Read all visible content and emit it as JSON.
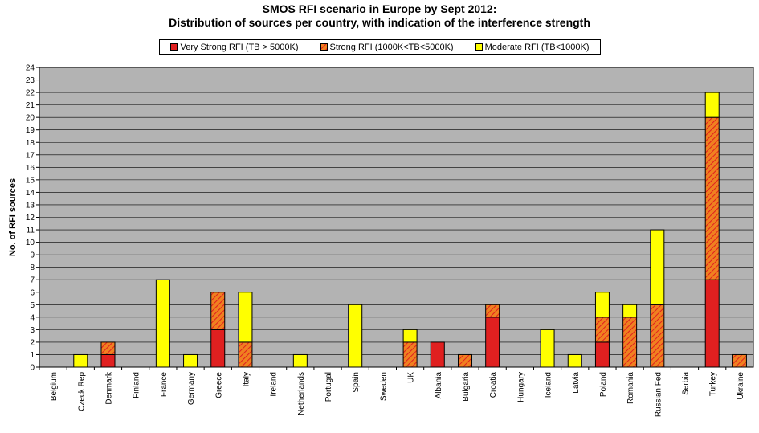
{
  "chart_data": {
    "type": "bar",
    "stacked": true,
    "title": "SMOS RFI scenario in Europe by  Sept 2012:",
    "subtitle": "Distribution of sources per country, with indication of the interference strength",
    "ylabel": "No. of RFI sources",
    "ylim": [
      0,
      24
    ],
    "yticks": [
      0,
      1,
      2,
      3,
      4,
      5,
      6,
      7,
      8,
      9,
      10,
      11,
      12,
      13,
      14,
      15,
      16,
      17,
      18,
      19,
      20,
      21,
      22,
      23,
      24
    ],
    "grid": true,
    "legend_position": "top-center",
    "categories": [
      "Belgium",
      "Czeck Rep",
      "Denmark",
      "Finland",
      "France",
      "Germany",
      "Greece",
      "Italy",
      "Ireland",
      "Netherlands",
      "Portugal",
      "Spain",
      "Sweden",
      "UK",
      "Albania",
      "Bulgaria",
      "Croatia",
      "Hungary",
      "Iceland",
      "Latvia",
      "Poland",
      "Romania",
      "Russian Fed",
      "Serbia",
      "Turkey",
      "Ukraine"
    ],
    "series": [
      {
        "name": "Very Strong RFI (TB > 5000K)",
        "color": "#e02020",
        "pattern": "solid",
        "values": [
          0,
          0,
          1,
          0,
          0,
          0,
          3,
          0,
          0,
          0,
          0,
          0,
          0,
          0,
          2,
          0,
          4,
          0,
          0,
          0,
          2,
          0,
          0,
          0,
          7,
          0
        ]
      },
      {
        "name": "Strong RFI (1000K<TB<5000K)",
        "color": "#f08020",
        "pattern": "hatched",
        "values": [
          0,
          0,
          1,
          0,
          0,
          0,
          3,
          2,
          0,
          0,
          0,
          0,
          0,
          2,
          0,
          1,
          1,
          0,
          0,
          0,
          2,
          4,
          5,
          0,
          13,
          1
        ]
      },
      {
        "name": "Moderate RFI (TB<1000K)",
        "color": "#ffff00",
        "pattern": "solid",
        "values": [
          0,
          1,
          0,
          0,
          7,
          1,
          0,
          4,
          0,
          1,
          0,
          5,
          0,
          1,
          0,
          0,
          0,
          0,
          3,
          1,
          2,
          1,
          6,
          0,
          2,
          0
        ]
      }
    ],
    "plot_bg": "#b3b3b3"
  }
}
